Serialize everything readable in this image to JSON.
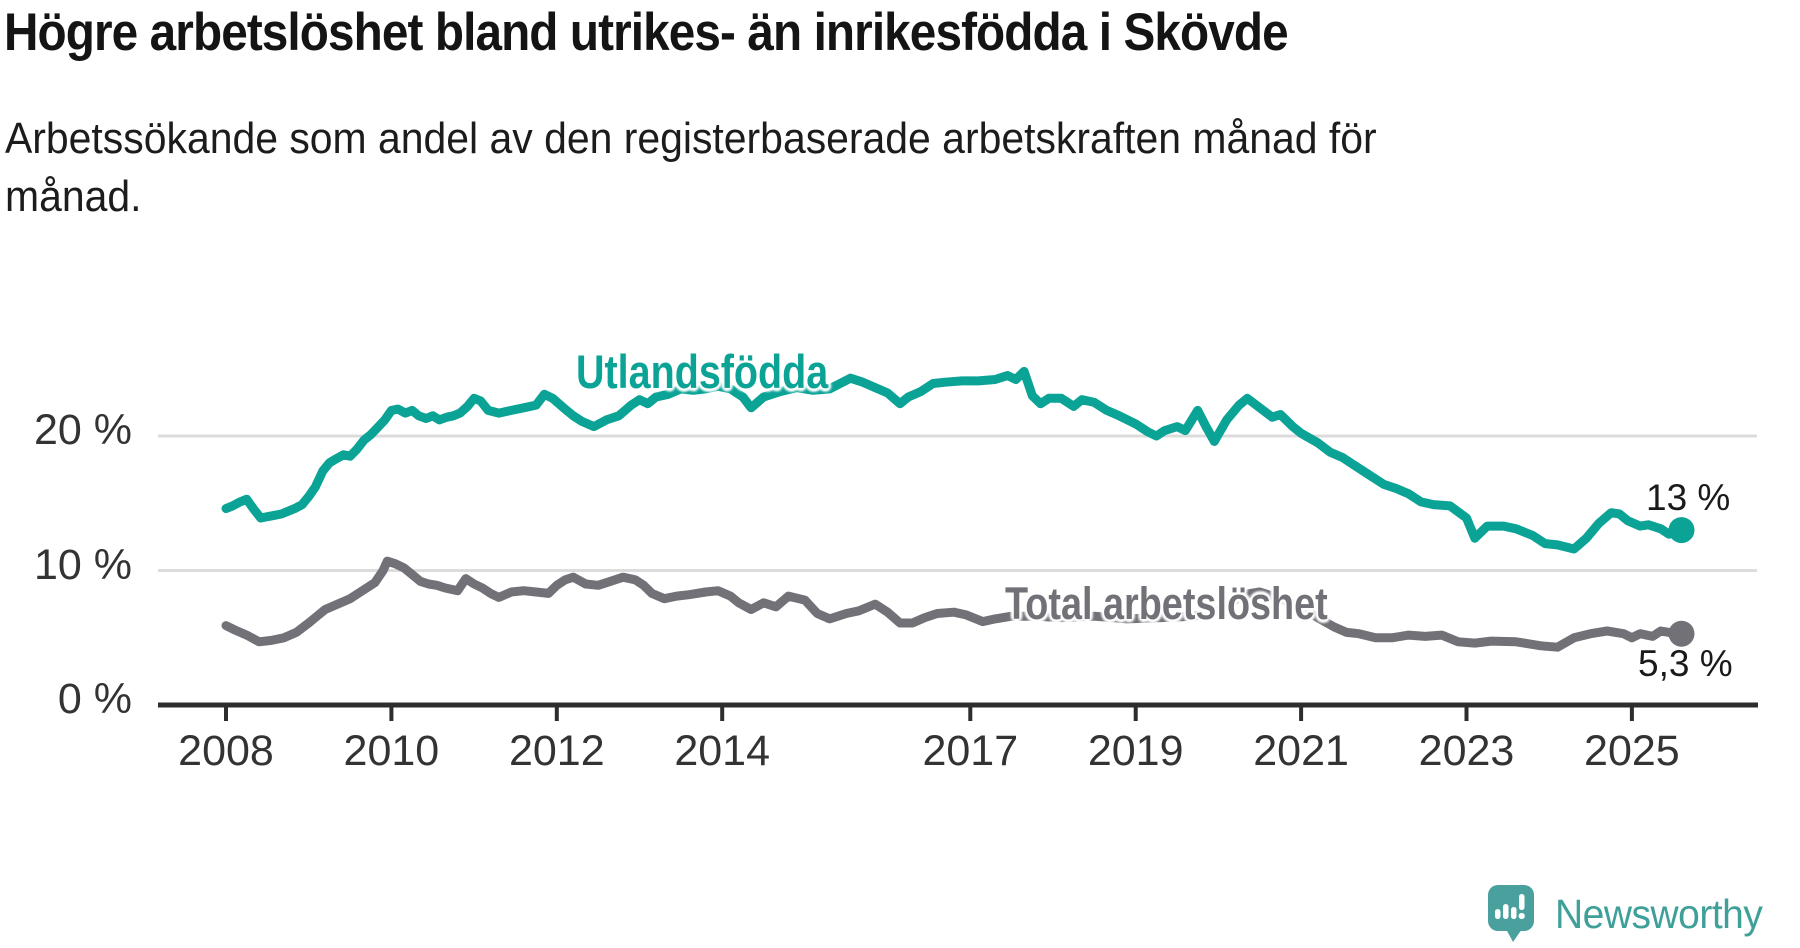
{
  "header": {
    "title": "Högre arbetslöshet bland utrikes- än inrikesfödda i Skövde",
    "subtitle_line1": "Arbetssökande som andel av den registerbaserade arbetskraften månad för",
    "subtitle_line2": "månad."
  },
  "chart_data": {
    "type": "line",
    "title": "Högre arbetslöshet bland utrikes- än inrikesfödda i Skövde",
    "unit": "%",
    "xlabel": "",
    "ylabel": "",
    "ylim": [
      0,
      27
    ],
    "x_range": [
      2008.0,
      2025.6
    ],
    "grid": "horizontal",
    "legend_position": "inline-labels",
    "axis_color": "#2d2d2d",
    "gridline_color": "#dcdcdc",
    "yticks": [
      {
        "value": 0,
        "label": "0 %"
      },
      {
        "value": 10,
        "label": "10 %"
      },
      {
        "value": 20,
        "label": "20 %"
      }
    ],
    "xticks": [
      {
        "year": 2008,
        "label": "2008"
      },
      {
        "year": 2010,
        "label": "2010"
      },
      {
        "year": 2012,
        "label": "2012"
      },
      {
        "year": 2014,
        "label": "2014"
      },
      {
        "year": 2017,
        "label": "2017"
      },
      {
        "year": 2019,
        "label": "2019"
      },
      {
        "year": 2021,
        "label": "2021"
      },
      {
        "year": 2023,
        "label": "2023"
      },
      {
        "year": 2025,
        "label": "2025"
      }
    ],
    "series": [
      {
        "name": "Utlandsfödda",
        "color": "#0aa396",
        "end_label": "13 %",
        "end_value": 13.0,
        "points": [
          [
            2008.0,
            14.6
          ],
          [
            2008.08,
            14.8
          ],
          [
            2008.17,
            15.1
          ],
          [
            2008.25,
            15.3
          ],
          [
            2008.33,
            14.6
          ],
          [
            2008.42,
            13.9
          ],
          [
            2008.5,
            14.0
          ],
          [
            2008.58,
            14.1
          ],
          [
            2008.67,
            14.2
          ],
          [
            2008.75,
            14.4
          ],
          [
            2008.83,
            14.6
          ],
          [
            2008.92,
            14.9
          ],
          [
            2009.0,
            15.5
          ],
          [
            2009.08,
            16.2
          ],
          [
            2009.17,
            17.4
          ],
          [
            2009.25,
            18.0
          ],
          [
            2009.33,
            18.3
          ],
          [
            2009.42,
            18.6
          ],
          [
            2009.5,
            18.5
          ],
          [
            2009.58,
            19.0
          ],
          [
            2009.67,
            19.7
          ],
          [
            2009.75,
            20.1
          ],
          [
            2009.83,
            20.6
          ],
          [
            2009.92,
            21.2
          ],
          [
            2010.0,
            21.9
          ],
          [
            2010.08,
            22.0
          ],
          [
            2010.17,
            21.7
          ],
          [
            2010.25,
            21.9
          ],
          [
            2010.33,
            21.5
          ],
          [
            2010.42,
            21.3
          ],
          [
            2010.5,
            21.5
          ],
          [
            2010.58,
            21.2
          ],
          [
            2010.67,
            21.4
          ],
          [
            2010.75,
            21.5
          ],
          [
            2010.83,
            21.7
          ],
          [
            2010.92,
            22.2
          ],
          [
            2011.0,
            22.8
          ],
          [
            2011.08,
            22.6
          ],
          [
            2011.17,
            21.9
          ],
          [
            2011.3,
            21.7
          ],
          [
            2011.45,
            21.9
          ],
          [
            2011.6,
            22.1
          ],
          [
            2011.75,
            22.3
          ],
          [
            2011.85,
            23.1
          ],
          [
            2011.95,
            22.8
          ],
          [
            2012.1,
            22.0
          ],
          [
            2012.2,
            21.5
          ],
          [
            2012.3,
            21.1
          ],
          [
            2012.45,
            20.7
          ],
          [
            2012.6,
            21.2
          ],
          [
            2012.75,
            21.5
          ],
          [
            2012.9,
            22.3
          ],
          [
            2013.0,
            22.7
          ],
          [
            2013.1,
            22.4
          ],
          [
            2013.2,
            22.9
          ],
          [
            2013.35,
            23.1
          ],
          [
            2013.5,
            23.5
          ],
          [
            2013.65,
            23.4
          ],
          [
            2013.8,
            23.5
          ],
          [
            2013.95,
            23.7
          ],
          [
            2014.1,
            23.5
          ],
          [
            2014.25,
            22.9
          ],
          [
            2014.35,
            22.1
          ],
          [
            2014.5,
            22.9
          ],
          [
            2014.7,
            23.3
          ],
          [
            2014.9,
            23.6
          ],
          [
            2015.1,
            23.4
          ],
          [
            2015.3,
            23.5
          ],
          [
            2015.55,
            24.3
          ],
          [
            2015.7,
            24.0
          ],
          [
            2015.85,
            23.6
          ],
          [
            2016.0,
            23.2
          ],
          [
            2016.15,
            22.4
          ],
          [
            2016.25,
            22.9
          ],
          [
            2016.4,
            23.3
          ],
          [
            2016.55,
            23.9
          ],
          [
            2016.7,
            24.0
          ],
          [
            2016.9,
            24.1
          ],
          [
            2017.1,
            24.1
          ],
          [
            2017.3,
            24.2
          ],
          [
            2017.45,
            24.5
          ],
          [
            2017.55,
            24.2
          ],
          [
            2017.65,
            24.8
          ],
          [
            2017.75,
            23.0
          ],
          [
            2017.85,
            22.4
          ],
          [
            2017.95,
            22.8
          ],
          [
            2018.1,
            22.8
          ],
          [
            2018.25,
            22.2
          ],
          [
            2018.35,
            22.7
          ],
          [
            2018.5,
            22.5
          ],
          [
            2018.65,
            21.9
          ],
          [
            2018.8,
            21.5
          ],
          [
            2019.0,
            20.9
          ],
          [
            2019.15,
            20.3
          ],
          [
            2019.25,
            20.0
          ],
          [
            2019.35,
            20.4
          ],
          [
            2019.5,
            20.7
          ],
          [
            2019.6,
            20.4
          ],
          [
            2019.75,
            21.9
          ],
          [
            2019.85,
            20.7
          ],
          [
            2019.95,
            19.6
          ],
          [
            2020.1,
            21.2
          ],
          [
            2020.25,
            22.3
          ],
          [
            2020.35,
            22.8
          ],
          [
            2020.5,
            22.1
          ],
          [
            2020.65,
            21.4
          ],
          [
            2020.75,
            21.6
          ],
          [
            2020.9,
            20.7
          ],
          [
            2021.0,
            20.2
          ],
          [
            2021.2,
            19.5
          ],
          [
            2021.35,
            18.8
          ],
          [
            2021.5,
            18.4
          ],
          [
            2021.65,
            17.8
          ],
          [
            2021.8,
            17.2
          ],
          [
            2022.0,
            16.4
          ],
          [
            2022.15,
            16.1
          ],
          [
            2022.3,
            15.7
          ],
          [
            2022.45,
            15.1
          ],
          [
            2022.6,
            14.9
          ],
          [
            2022.8,
            14.8
          ],
          [
            2023.0,
            13.9
          ],
          [
            2023.1,
            12.4
          ],
          [
            2023.25,
            13.3
          ],
          [
            2023.45,
            13.3
          ],
          [
            2023.6,
            13.1
          ],
          [
            2023.8,
            12.6
          ],
          [
            2023.95,
            12.0
          ],
          [
            2024.1,
            11.9
          ],
          [
            2024.3,
            11.6
          ],
          [
            2024.45,
            12.4
          ],
          [
            2024.6,
            13.5
          ],
          [
            2024.75,
            14.3
          ],
          [
            2024.85,
            14.2
          ],
          [
            2024.95,
            13.7
          ],
          [
            2025.1,
            13.3
          ],
          [
            2025.2,
            13.4
          ],
          [
            2025.35,
            13.1
          ],
          [
            2025.45,
            12.7
          ],
          [
            2025.6,
            13.0
          ]
        ]
      },
      {
        "name": "Total arbetslöshet",
        "color": "#737178",
        "end_label": "5,3 %",
        "end_value": 5.3,
        "points": [
          [
            2008.0,
            5.9
          ],
          [
            2008.1,
            5.6
          ],
          [
            2008.25,
            5.2
          ],
          [
            2008.4,
            4.7
          ],
          [
            2008.55,
            4.8
          ],
          [
            2008.7,
            5.0
          ],
          [
            2008.85,
            5.4
          ],
          [
            2009.0,
            6.1
          ],
          [
            2009.1,
            6.6
          ],
          [
            2009.2,
            7.1
          ],
          [
            2009.35,
            7.5
          ],
          [
            2009.5,
            7.9
          ],
          [
            2009.6,
            8.3
          ],
          [
            2009.7,
            8.7
          ],
          [
            2009.8,
            9.1
          ],
          [
            2009.9,
            10.0
          ],
          [
            2009.95,
            10.7
          ],
          [
            2010.05,
            10.5
          ],
          [
            2010.15,
            10.2
          ],
          [
            2010.25,
            9.7
          ],
          [
            2010.35,
            9.2
          ],
          [
            2010.45,
            9.0
          ],
          [
            2010.55,
            8.9
          ],
          [
            2010.65,
            8.7
          ],
          [
            2010.8,
            8.5
          ],
          [
            2010.9,
            9.4
          ],
          [
            2011.0,
            9.0
          ],
          [
            2011.1,
            8.7
          ],
          [
            2011.2,
            8.3
          ],
          [
            2011.3,
            8.0
          ],
          [
            2011.45,
            8.4
          ],
          [
            2011.6,
            8.5
          ],
          [
            2011.75,
            8.4
          ],
          [
            2011.9,
            8.3
          ],
          [
            2012.0,
            8.9
          ],
          [
            2012.1,
            9.3
          ],
          [
            2012.2,
            9.5
          ],
          [
            2012.35,
            9.0
          ],
          [
            2012.5,
            8.9
          ],
          [
            2012.65,
            9.2
          ],
          [
            2012.8,
            9.5
          ],
          [
            2012.95,
            9.3
          ],
          [
            2013.05,
            8.9
          ],
          [
            2013.15,
            8.3
          ],
          [
            2013.3,
            7.9
          ],
          [
            2013.45,
            8.1
          ],
          [
            2013.6,
            8.2
          ],
          [
            2013.8,
            8.4
          ],
          [
            2013.95,
            8.5
          ],
          [
            2014.1,
            8.1
          ],
          [
            2014.2,
            7.6
          ],
          [
            2014.35,
            7.1
          ],
          [
            2014.5,
            7.6
          ],
          [
            2014.65,
            7.3
          ],
          [
            2014.8,
            8.1
          ],
          [
            2015.0,
            7.8
          ],
          [
            2015.15,
            6.8
          ],
          [
            2015.3,
            6.4
          ],
          [
            2015.5,
            6.8
          ],
          [
            2015.65,
            7.0
          ],
          [
            2015.85,
            7.5
          ],
          [
            2016.0,
            6.9
          ],
          [
            2016.15,
            6.1
          ],
          [
            2016.3,
            6.1
          ],
          [
            2016.45,
            6.5
          ],
          [
            2016.6,
            6.8
          ],
          [
            2016.8,
            6.9
          ],
          [
            2016.95,
            6.7
          ],
          [
            2017.15,
            6.2
          ],
          [
            2017.3,
            6.4
          ],
          [
            2017.5,
            6.6
          ],
          [
            2017.8,
            6.6
          ],
          [
            2018.1,
            6.5
          ],
          [
            2018.5,
            6.6
          ],
          [
            2018.9,
            6.4
          ],
          [
            2019.3,
            6.5
          ],
          [
            2019.7,
            6.6
          ],
          [
            2020.0,
            7.0
          ],
          [
            2020.3,
            8.2
          ],
          [
            2020.5,
            8.4
          ],
          [
            2020.8,
            7.8
          ],
          [
            2021.0,
            7.2
          ],
          [
            2021.2,
            6.5
          ],
          [
            2021.4,
            5.8
          ],
          [
            2021.55,
            5.4
          ],
          [
            2021.7,
            5.3
          ],
          [
            2021.9,
            5.0
          ],
          [
            2022.1,
            5.0
          ],
          [
            2022.3,
            5.2
          ],
          [
            2022.5,
            5.1
          ],
          [
            2022.7,
            5.2
          ],
          [
            2022.9,
            4.7
          ],
          [
            2023.1,
            4.6
          ],
          [
            2023.3,
            4.75
          ],
          [
            2023.6,
            4.7
          ],
          [
            2023.9,
            4.4
          ],
          [
            2024.1,
            4.3
          ],
          [
            2024.3,
            5.0
          ],
          [
            2024.5,
            5.3
          ],
          [
            2024.7,
            5.5
          ],
          [
            2024.9,
            5.3
          ],
          [
            2025.0,
            5.0
          ],
          [
            2025.1,
            5.3
          ],
          [
            2025.25,
            5.1
          ],
          [
            2025.35,
            5.5
          ],
          [
            2025.45,
            5.4
          ],
          [
            2025.6,
            5.3
          ]
        ]
      }
    ]
  },
  "branding": {
    "name": "Newsworthy",
    "text_color": "#3f9f99",
    "icon_color": "#4aa09d"
  }
}
